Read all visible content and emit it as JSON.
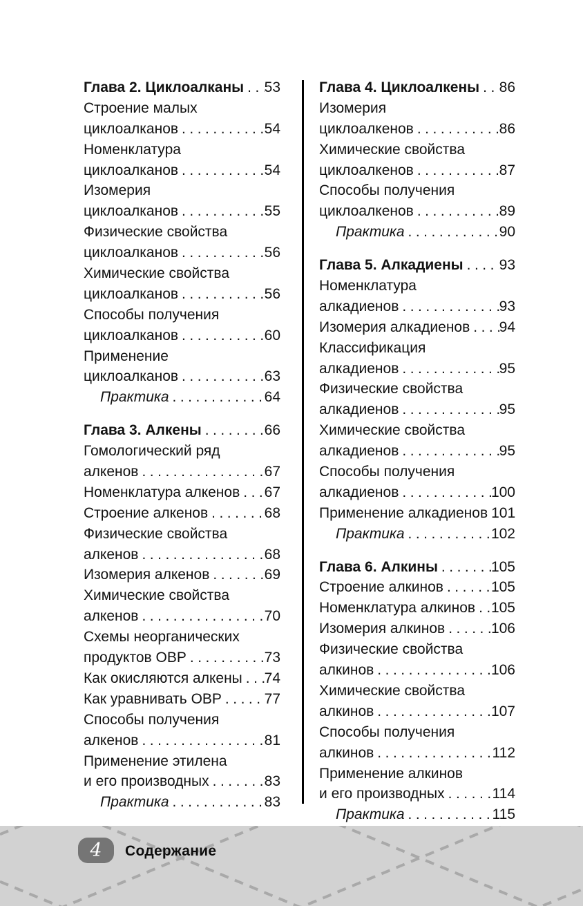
{
  "footer": {
    "page_number": "4",
    "section_label": "Содержание"
  },
  "colors": {
    "text": "#121212",
    "divider": "#000000",
    "footer_bg": "#d2d2d2",
    "footer_dash": "#a9a9a9",
    "badge_bg": "#757575",
    "badge_text": "#ffffff"
  },
  "toc": {
    "columns": [
      {
        "rows": [
          {
            "text": "Глава 2. Циклоалканы",
            "page": "53",
            "style": "chapter"
          },
          {
            "text": "Строение малых",
            "page": null
          },
          {
            "text": "циклоалканов",
            "page": "54"
          },
          {
            "text": "Номенклатура",
            "page": null
          },
          {
            "text": "циклоалканов",
            "page": "54"
          },
          {
            "text": "Изомерия",
            "page": null
          },
          {
            "text": "циклоалканов",
            "page": "55"
          },
          {
            "text": "Физические свойства",
            "page": null
          },
          {
            "text": "циклоалканов",
            "page": "56"
          },
          {
            "text": "Химические свойства",
            "page": null
          },
          {
            "text": "циклоалканов",
            "page": "56"
          },
          {
            "text": "Способы получения",
            "page": null
          },
          {
            "text": "циклоалканов",
            "page": "60"
          },
          {
            "text": "Применение",
            "page": null
          },
          {
            "text": "циклоалканов",
            "page": "63"
          },
          {
            "text": "Практика",
            "page": "64",
            "style": "practice"
          },
          {
            "text": "Глава 3. Алкены",
            "page": "66",
            "style": "chapter"
          },
          {
            "text": "Гомологический ряд",
            "page": null
          },
          {
            "text": "алкенов",
            "page": "67"
          },
          {
            "text": "Номенклатура алкенов",
            "page": "67"
          },
          {
            "text": "Строение алкенов",
            "page": "68"
          },
          {
            "text": "Физические свойства",
            "page": null
          },
          {
            "text": "алкенов",
            "page": "68"
          },
          {
            "text": "Изомерия алкенов",
            "page": "69"
          },
          {
            "text": "Химические свойства",
            "page": null
          },
          {
            "text": "алкенов",
            "page": "70"
          },
          {
            "text": "Схемы неорганических",
            "page": null
          },
          {
            "text": "продуктов ОВР",
            "page": "73"
          },
          {
            "text": "Как окисляются алкены",
            "page": "74"
          },
          {
            "text": "Как уравнивать ОВР",
            "page": "77"
          },
          {
            "text": "Способы получения",
            "page": null
          },
          {
            "text": "алкенов",
            "page": "81"
          },
          {
            "text": "Применение этилена",
            "page": null
          },
          {
            "text": "и его производных",
            "page": "83"
          },
          {
            "text": "Практика",
            "page": "83",
            "style": "practice"
          }
        ]
      },
      {
        "rows": [
          {
            "text": "Глава 4. Циклоалкены",
            "page": "86",
            "style": "chapter"
          },
          {
            "text": "Изомерия",
            "page": null
          },
          {
            "text": "циклоалкенов",
            "page": "86"
          },
          {
            "text": "Химические свойства",
            "page": null
          },
          {
            "text": "циклоалкенов",
            "page": "87"
          },
          {
            "text": "Способы получения",
            "page": null
          },
          {
            "text": "циклоалкенов",
            "page": "89"
          },
          {
            "text": "Практика",
            "page": "90",
            "style": "practice"
          },
          {
            "text": "Глава 5. Алкадиены",
            "page": "93",
            "style": "chapter"
          },
          {
            "text": "Номенклатура",
            "page": null
          },
          {
            "text": "алкадиенов",
            "page": "93"
          },
          {
            "text": "Изомерия алкадиенов",
            "page": "94"
          },
          {
            "text": "Классификация",
            "page": null
          },
          {
            "text": "алкадиенов",
            "page": "95"
          },
          {
            "text": "Физические свойства",
            "page": null
          },
          {
            "text": "алкадиенов",
            "page": "95"
          },
          {
            "text": "Химические свойства",
            "page": null
          },
          {
            "text": "алкадиенов",
            "page": "95"
          },
          {
            "text": "Способы получения",
            "page": null
          },
          {
            "text": "алкадиенов",
            "page": "100"
          },
          {
            "text": "Применение алкадиенов",
            "page": "101"
          },
          {
            "text": "Практика",
            "page": "102",
            "style": "practice"
          },
          {
            "text": "Глава 6. Алкины",
            "page": "105",
            "style": "chapter"
          },
          {
            "text": "Строение алкинов",
            "page": "105"
          },
          {
            "text": "Номенклатура алкинов",
            "page": "105"
          },
          {
            "text": "Изомерия алкинов",
            "page": "106"
          },
          {
            "text": "Физические свойства",
            "page": null
          },
          {
            "text": "алкинов",
            "page": "106"
          },
          {
            "text": "Химические свойства",
            "page": null
          },
          {
            "text": "алкинов",
            "page": "107"
          },
          {
            "text": "Способы получения",
            "page": null
          },
          {
            "text": "алкинов",
            "page": "112"
          },
          {
            "text": "Применение алкинов",
            "page": null
          },
          {
            "text": "и его производных",
            "page": "114"
          },
          {
            "text": "Практика",
            "page": "115",
            "style": "practice"
          }
        ]
      }
    ]
  }
}
